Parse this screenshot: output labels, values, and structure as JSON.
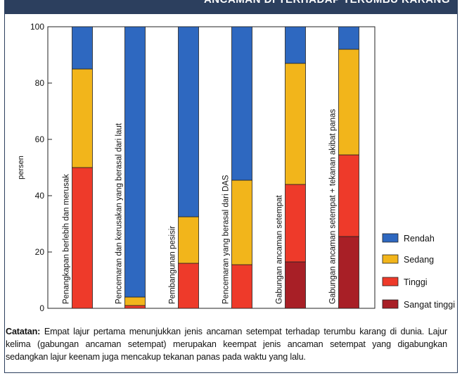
{
  "header": {
    "title": "ANCAMAN DI TERHADAP TERUMBU KARANG"
  },
  "colors": {
    "rendah": "#2e68c0",
    "sedang": "#f2b51b",
    "tinggi": "#ee3a2a",
    "sangat_tinggi": "#a81f26",
    "header_band": "#2c3f5e"
  },
  "chart_data": {
    "type": "bar",
    "stacked": true,
    "ylabel": "persen",
    "ylim": [
      0,
      100
    ],
    "yticks": [
      0,
      20,
      40,
      60,
      80,
      100
    ],
    "grid": false,
    "legend_position": "right-bottom",
    "categories": [
      "Penangkapan berlebih dan merusak",
      "Pencemaran dan kerusakan yang berasal dari laut",
      "Pembangunan pesisir",
      "Pencemaran yang berasal dari DAS",
      "Gabungan ancaman setempat",
      "Gabungan ancaman setempat + tekanan akibat panas"
    ],
    "series": [
      {
        "name": "Sangat tinggi",
        "values": [
          0,
          0,
          0,
          0,
          16.5,
          25.5
        ]
      },
      {
        "name": "Tinggi",
        "values": [
          50,
          1,
          16,
          15.5,
          27.5,
          29
        ]
      },
      {
        "name": "Sedang",
        "values": [
          35,
          3,
          16.5,
          30,
          43,
          37.5
        ]
      },
      {
        "name": "Rendah",
        "values": [
          15,
          96,
          67.5,
          54.5,
          13,
          8
        ]
      }
    ],
    "legend": [
      "Rendah",
      "Sedang",
      "Tinggi",
      "Sangat tinggi"
    ]
  },
  "note": {
    "label": "Catatan:",
    "text": " Empat lajur pertama menunjukkan jenis ancaman setempat terhadap terumbu karang di dunia. Lajur kelima (gabungan ancaman setempat) merupakan keempat jenis ancaman setempat yang digabungkan sedangkan lajur keenam juga mencakup tekanan panas pada waktu yang lalu."
  }
}
